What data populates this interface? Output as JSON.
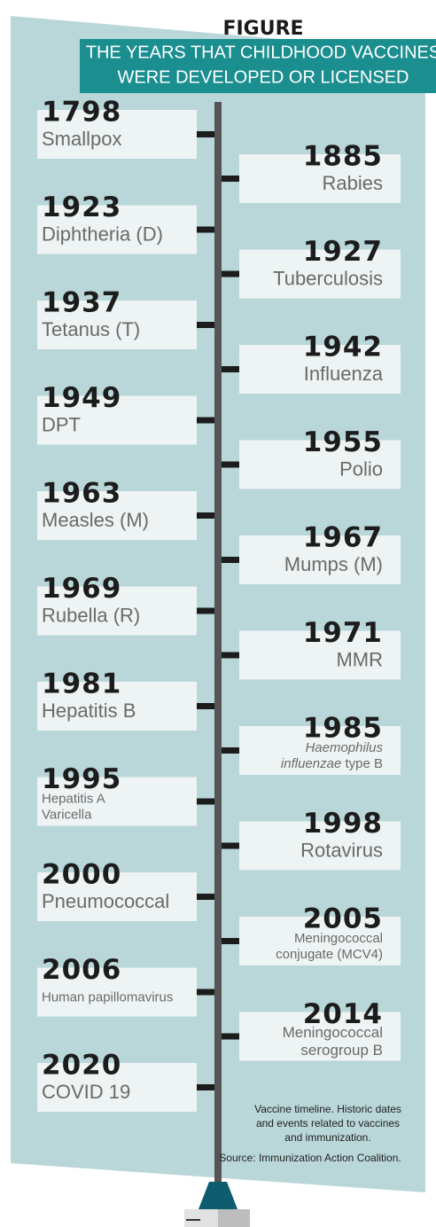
{
  "header": {
    "label": "FIGURE",
    "title_lines": [
      "THE YEARS THAT CHILDHOOD VACCINES",
      "WERE DEVELOPED OR LICENSED"
    ]
  },
  "left_events": [
    {
      "year": "1798",
      "label": [
        "Smallpox"
      ]
    },
    {
      "year": "1923",
      "label": [
        "Diphtheria (D)"
      ]
    },
    {
      "year": "1937",
      "label": [
        "Tetanus (T)"
      ]
    },
    {
      "year": "1949",
      "label": [
        "DPT"
      ]
    },
    {
      "year": "1963",
      "label": [
        "Measles (M)"
      ]
    },
    {
      "year": "1969",
      "label": [
        "Rubella (R)"
      ]
    },
    {
      "year": "1981",
      "label": [
        "Hepatitis B"
      ]
    },
    {
      "year": "1995",
      "label": [
        "Hepatitis A",
        "Varicella"
      ],
      "small": true
    },
    {
      "year": "2000",
      "label": [
        "Pneumococcal"
      ]
    },
    {
      "year": "2006",
      "label": [
        "Human papillomavirus"
      ],
      "small": true
    },
    {
      "year": "2020",
      "label": [
        "COVID 19"
      ]
    }
  ],
  "right_events": [
    {
      "year": "1885",
      "label": [
        "Rabies"
      ]
    },
    {
      "year": "1927",
      "label": [
        "Tuberculosis"
      ]
    },
    {
      "year": "1942",
      "label": [
        "Influenza"
      ]
    },
    {
      "year": "1955",
      "label": [
        "Polio"
      ]
    },
    {
      "year": "1967",
      "label": [
        "Mumps (M)"
      ]
    },
    {
      "year": "1971",
      "label": [
        "MMR"
      ]
    },
    {
      "year": "1985",
      "label": [
        [
          {
            "text": "Haemophilus",
            "italic": true
          }
        ],
        [
          {
            "text": "influenzae",
            "italic": true
          },
          {
            "text": " type B"
          }
        ]
      ],
      "small": true
    },
    {
      "year": "1998",
      "label": [
        "Rotavirus"
      ]
    },
    {
      "year": "2005",
      "label": [
        "Meningococcal",
        "conjugate (MCV4)"
      ],
      "small": true
    },
    {
      "year": "2014",
      "label": [
        "Meningococcal",
        "serogroup B"
      ],
      "medium": true
    }
  ],
  "notes": {
    "caption_lines": [
      "Vaccine timeline. Historic dates",
      "and events related to vaccines",
      "and immunization."
    ],
    "source": "Source: Immunization Action Coalition."
  }
}
